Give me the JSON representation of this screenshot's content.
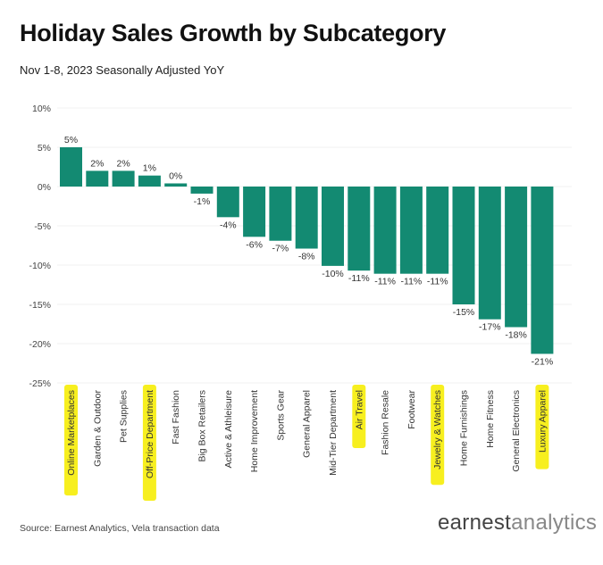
{
  "header": {
    "title": "Holiday Sales Growth by Subcategory",
    "subtitle": "Nov 1-8, 2023 Seasonally Adjusted YoY"
  },
  "footer": {
    "source": "Source: Earnest Analytics, Vela transaction data",
    "logo_bold": "earnest",
    "logo_light": "analytics"
  },
  "colors": {
    "bar": "#138a72",
    "highlight": "#f7ef1f",
    "grid": "#e6e6e6"
  },
  "chart_data": {
    "type": "bar",
    "title": "Holiday Sales Growth by Subcategory",
    "subtitle": "Nov 1-8, 2023 Seasonally Adjusted YoY",
    "xlabel": "",
    "ylabel": "",
    "ylim": [
      -25,
      10
    ],
    "yticks": [
      10,
      5,
      0,
      -5,
      -10,
      -15,
      -20,
      -25
    ],
    "ytick_labels": [
      "10%",
      "5%",
      "0%",
      "-5%",
      "-10%",
      "-15%",
      "-20%",
      "-25%"
    ],
    "categories": [
      "Online Marketplaces",
      "Garden & Outdoor",
      "Pet Supplies",
      "Off-Price Department",
      "Fast Fashion",
      "Big Box Retailers",
      "Active & Athleisure",
      "Home Improvement",
      "Sports Gear",
      "General Apparel",
      "Mid-Tier Department",
      "Air Travel",
      "Fashion Resale",
      "Footwear",
      "Jewelry & Watches",
      "Home Furnishings",
      "Home Fitness",
      "General Electronics",
      "Luxury Apparel"
    ],
    "values": [
      5,
      2,
      2,
      1.4,
      0.4,
      -0.9,
      -3.9,
      -6.4,
      -6.9,
      -7.9,
      -10.1,
      -10.7,
      -11.1,
      -11.1,
      -11.1,
      -15.0,
      -16.9,
      -17.9,
      -21.3
    ],
    "labels": [
      "5%",
      "2%",
      "2%",
      "1%",
      "0%",
      "-1%",
      "-4%",
      "-6%",
      "-7%",
      "-8%",
      "-10%",
      "-11%",
      "-11%",
      "-11%",
      "-11%",
      "-15%",
      "-17%",
      "-18%",
      "-21%"
    ],
    "highlighted": [
      "Online Marketplaces",
      "Off-Price Department",
      "Air Travel",
      "Jewelry & Watches",
      "Luxury Apparel"
    ],
    "grid": true,
    "legend": "none"
  }
}
